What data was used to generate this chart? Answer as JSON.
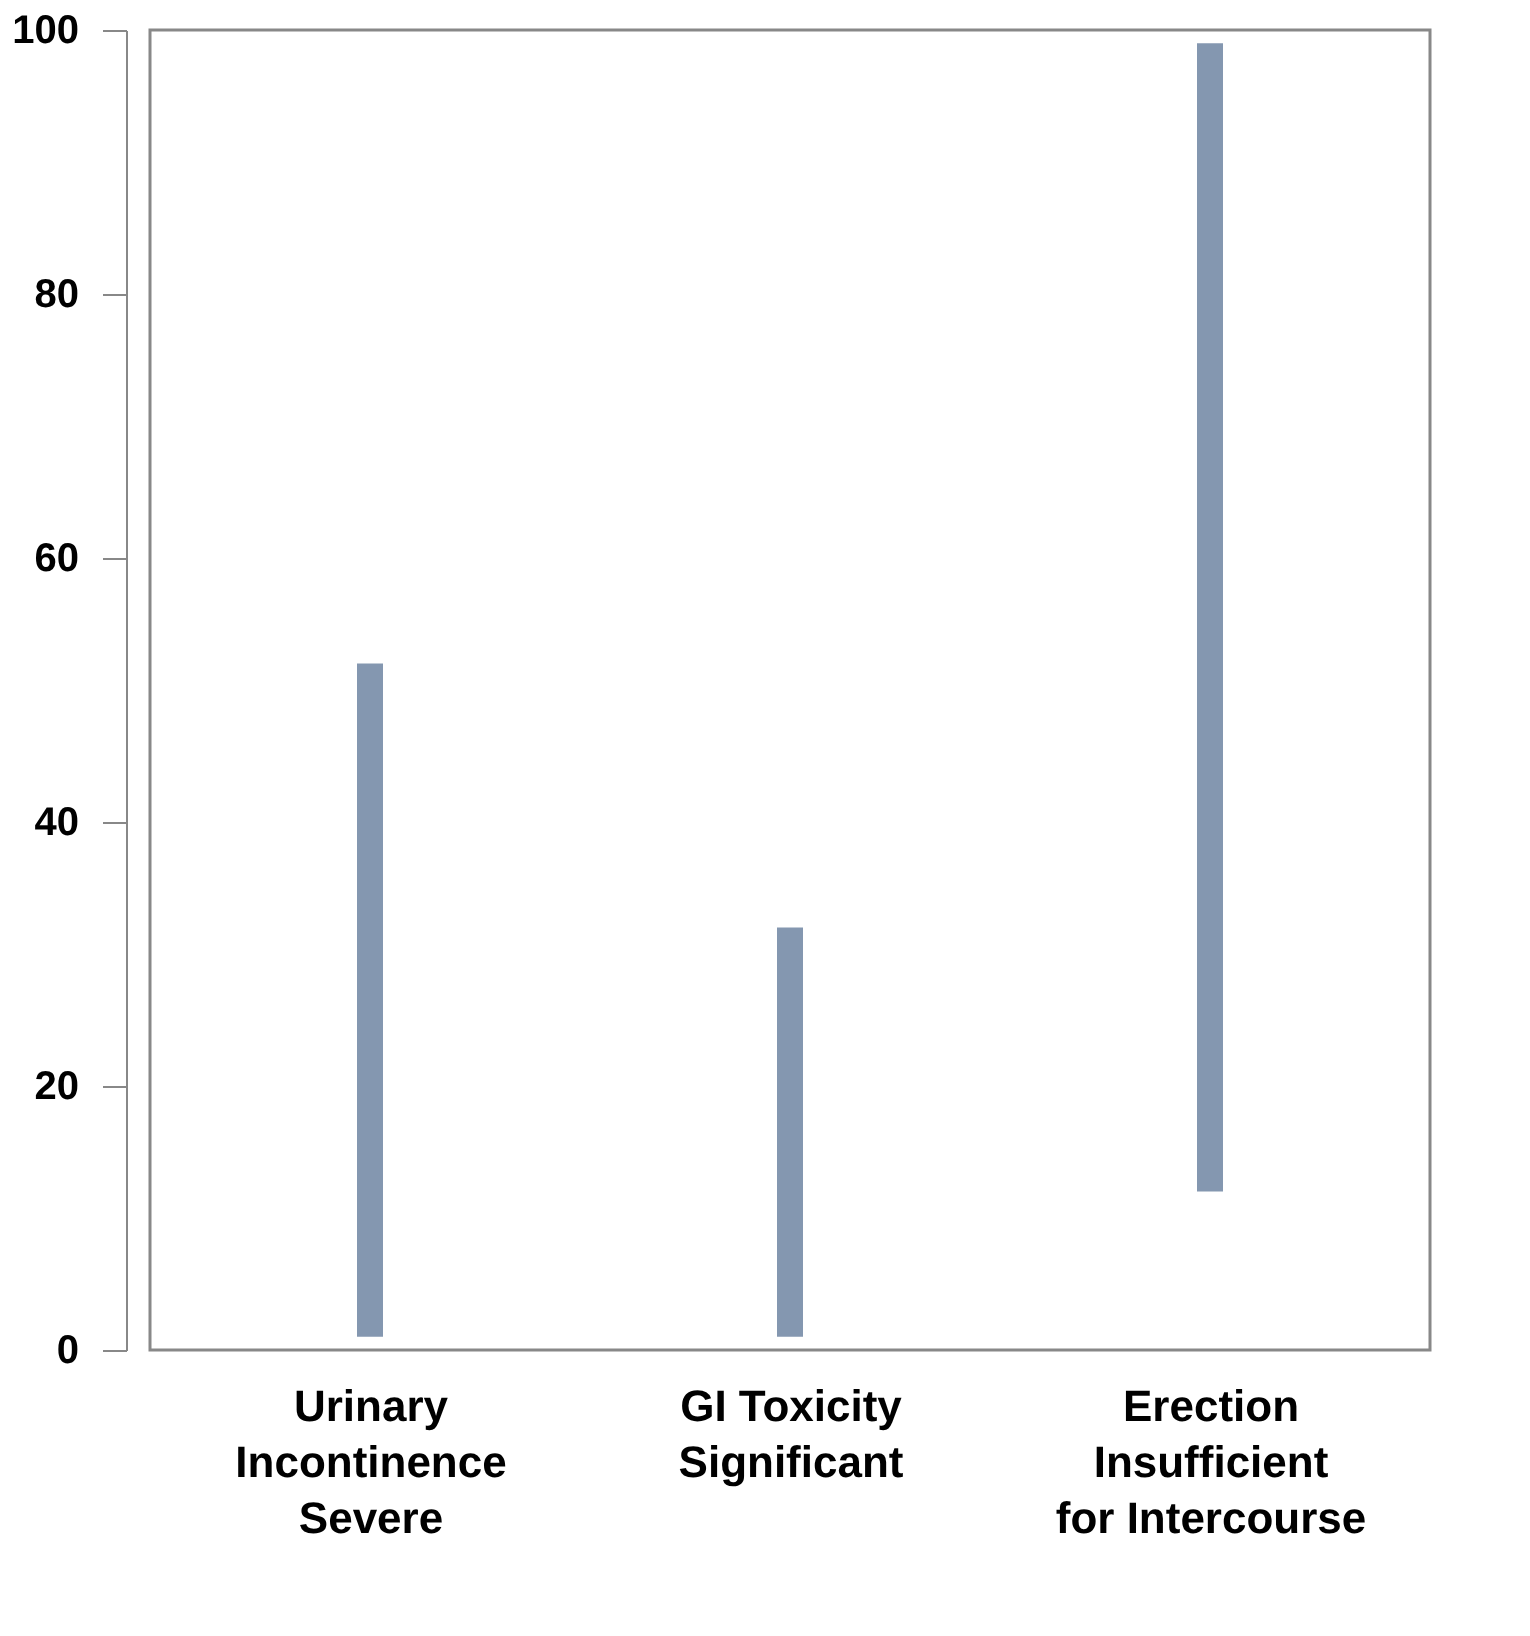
{
  "chart_data": {
    "type": "bar",
    "categories": [
      "Urinary\nIncontinence\nSevere",
      "GI Toxicity\nSignificant",
      "Erection\nInsufficient\nfor Intercourse"
    ],
    "base": [
      1,
      1,
      12
    ],
    "values": [
      51,
      31,
      87
    ],
    "color": "#8497b0",
    "ylim": [
      0,
      100
    ],
    "yticks": [
      0,
      20,
      40,
      60,
      80,
      100
    ],
    "grid": false
  }
}
